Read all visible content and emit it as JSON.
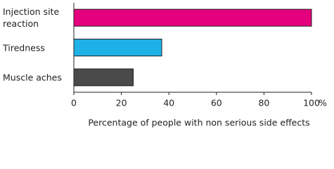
{
  "chart_data": {
    "type": "hbar",
    "categories": [
      "Injection site reaction",
      "Tiredness",
      "Muscle aches"
    ],
    "values": [
      100,
      37,
      25
    ],
    "colors": [
      "#e5007d",
      "#1eb1e7",
      "#4a4a4a"
    ],
    "xlim": [
      0,
      100
    ],
    "xticks": [
      0,
      20,
      40,
      60,
      80,
      100
    ],
    "x_unit": "%",
    "xlabel": "Percentage of people with non serious side effects",
    "grid": false
  }
}
